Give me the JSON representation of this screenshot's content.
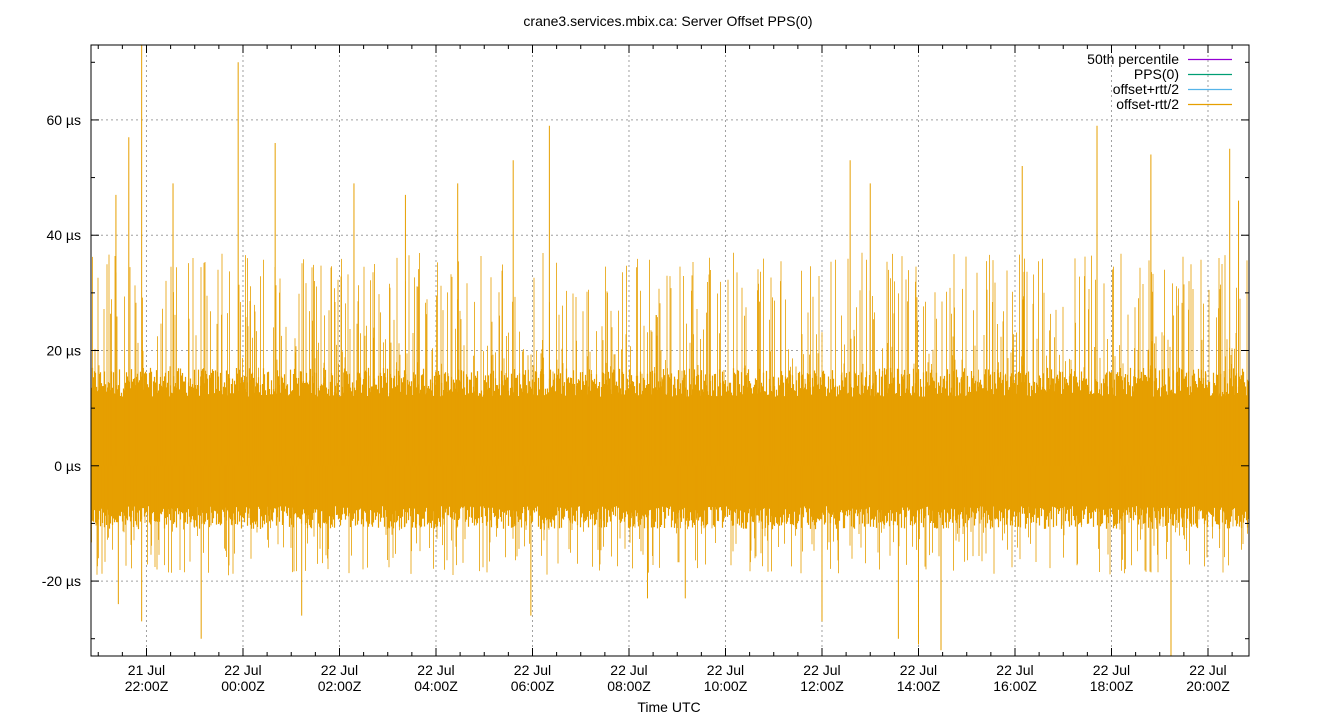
{
  "chart_data": {
    "type": "line",
    "title": "crane3.services.mbix.ca: Server Offset PPS(0)",
    "xlabel": "Time UTC",
    "ylabel": "",
    "y_unit": "µs",
    "ylim": [
      -33,
      73
    ],
    "y_ticks": [
      {
        "value": -20,
        "label": "-20 µs"
      },
      {
        "value": 0,
        "label": "0 µs"
      },
      {
        "value": 20,
        "label": "20 µs"
      },
      {
        "value": 40,
        "label": "40 µs"
      },
      {
        "value": 60,
        "label": "60 µs"
      }
    ],
    "xlim": [
      "2024-07-21T20:51:00Z",
      "2024-07-22T20:51:00Z"
    ],
    "x_ticks": [
      {
        "time": "2024-07-21T22:00:00Z",
        "date": "21 Jul",
        "hour": "22:00Z"
      },
      {
        "time": "2024-07-22T00:00:00Z",
        "date": "22 Jul",
        "hour": "00:00Z"
      },
      {
        "time": "2024-07-22T02:00:00Z",
        "date": "22 Jul",
        "hour": "02:00Z"
      },
      {
        "time": "2024-07-22T04:00:00Z",
        "date": "22 Jul",
        "hour": "04:00Z"
      },
      {
        "time": "2024-07-22T06:00:00Z",
        "date": "22 Jul",
        "hour": "06:00Z"
      },
      {
        "time": "2024-07-22T08:00:00Z",
        "date": "22 Jul",
        "hour": "08:00Z"
      },
      {
        "time": "2024-07-22T10:00:00Z",
        "date": "22 Jul",
        "hour": "10:00Z"
      },
      {
        "time": "2024-07-22T12:00:00Z",
        "date": "22 Jul",
        "hour": "12:00Z"
      },
      {
        "time": "2024-07-22T14:00:00Z",
        "date": "22 Jul",
        "hour": "14:00Z"
      },
      {
        "time": "2024-07-22T16:00:00Z",
        "date": "22 Jul",
        "hour": "16:00Z"
      },
      {
        "time": "2024-07-22T18:00:00Z",
        "date": "22 Jul",
        "hour": "18:00Z"
      },
      {
        "time": "2024-07-22T20:00:00Z",
        "date": "22 Jul",
        "hour": "20:00Z"
      }
    ],
    "grid": true,
    "legend_position": "top-right",
    "series": [
      {
        "name": "50th percentile",
        "color": "#9400d3",
        "values": []
      },
      {
        "name": "PPS(0)",
        "color": "#009e73",
        "values": []
      },
      {
        "name": "offset+rtt/2",
        "color": "#56b4e9",
        "values": []
      },
      {
        "name": "offset-rtt/2",
        "color": "#e69f00",
        "style": "dense vertical spikes, bulk roughly -9 to 15 µs",
        "points": [
          {
            "t": "2024-07-21T21:54:00Z",
            "y": 73
          },
          {
            "t": "2024-07-21T21:54:00Z",
            "y": -27
          },
          {
            "t": "2024-07-21T21:38:00Z",
            "y": 57
          },
          {
            "t": "2024-07-21T21:22:00Z",
            "y": 47
          },
          {
            "t": "2024-07-21T21:25:00Z",
            "y": -24
          },
          {
            "t": "2024-07-21T22:33:00Z",
            "y": 49
          },
          {
            "t": "2024-07-21T23:08:00Z",
            "y": -30
          },
          {
            "t": "2024-07-21T23:54:00Z",
            "y": 70
          },
          {
            "t": "2024-07-22T00:40:00Z",
            "y": 56
          },
          {
            "t": "2024-07-22T01:13:00Z",
            "y": -26
          },
          {
            "t": "2024-07-22T02:18:00Z",
            "y": 49
          },
          {
            "t": "2024-07-22T03:22:00Z",
            "y": 47
          },
          {
            "t": "2024-07-22T04:27:00Z",
            "y": 49
          },
          {
            "t": "2024-07-22T05:36:00Z",
            "y": 53
          },
          {
            "t": "2024-07-22T05:58:00Z",
            "y": -26
          },
          {
            "t": "2024-07-22T06:21:00Z",
            "y": 59
          },
          {
            "t": "2024-07-22T08:23:00Z",
            "y": -23
          },
          {
            "t": "2024-07-22T09:10:00Z",
            "y": -23
          },
          {
            "t": "2024-07-22T12:00:00Z",
            "y": -27
          },
          {
            "t": "2024-07-22T12:35:00Z",
            "y": 53
          },
          {
            "t": "2024-07-22T13:00:00Z",
            "y": 49
          },
          {
            "t": "2024-07-22T13:35:00Z",
            "y": -30
          },
          {
            "t": "2024-07-22T14:00:00Z",
            "y": -31
          },
          {
            "t": "2024-07-22T14:28:00Z",
            "y": -32
          },
          {
            "t": "2024-07-22T16:09:00Z",
            "y": 52
          },
          {
            "t": "2024-07-22T17:42:00Z",
            "y": 59
          },
          {
            "t": "2024-07-22T18:49:00Z",
            "y": 54
          },
          {
            "t": "2024-07-22T19:14:00Z",
            "y": -33
          },
          {
            "t": "2024-07-22T20:27:00Z",
            "y": 55
          },
          {
            "t": "2024-07-22T20:38:00Z",
            "y": 46
          }
        ]
      }
    ]
  }
}
